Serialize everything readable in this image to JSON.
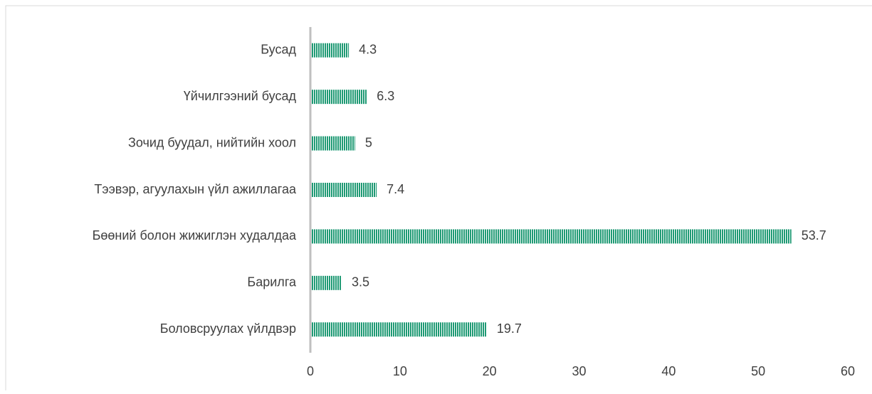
{
  "chart_data": {
    "type": "bar",
    "orientation": "horizontal",
    "categories": [
      "Бусад",
      "Үйчилгээний бусад",
      "Зочид буудал, нийтийн хоол",
      "Тээвэр, агуулахын үйл ажиллагаа",
      "Бөөний болон жижиглэн худалдаа",
      "Барилга",
      "Боловсруулах үйлдвэр"
    ],
    "values": [
      4.3,
      6.3,
      5,
      7.4,
      53.7,
      3.5,
      19.7
    ],
    "color": "#1f9a74",
    "xlim": [
      0,
      60
    ],
    "xticks": [
      0,
      10,
      20,
      30,
      40,
      50,
      60
    ],
    "grid": false
  }
}
